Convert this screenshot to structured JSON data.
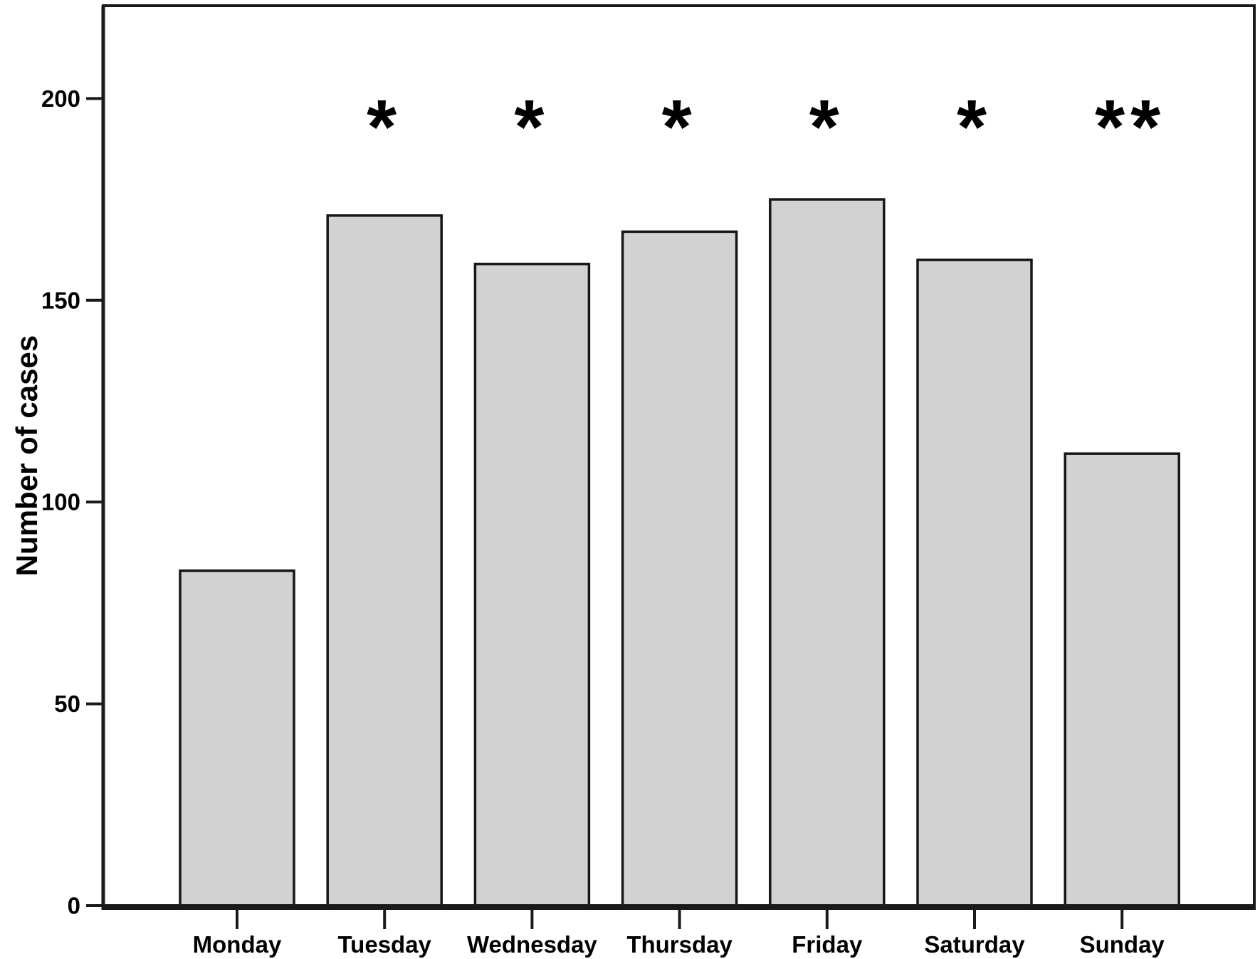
{
  "figure": {
    "background": "#ffffff"
  },
  "chart_data": {
    "type": "bar",
    "title": "",
    "xlabel": "",
    "ylabel": "Number of cases",
    "categories": [
      "Monday",
      "Tuesday",
      "Wednesday",
      "Thursday",
      "Friday",
      "Saturday",
      "Sunday"
    ],
    "values": [
      83,
      171,
      159,
      167,
      175,
      160,
      112
    ],
    "significance_annotations": [
      "",
      "*",
      "*",
      "*",
      "*",
      "*",
      "**"
    ],
    "yticks": [
      0,
      50,
      100,
      150,
      200
    ],
    "ylim": [
      0,
      223
    ],
    "grid": false,
    "legend_position": "none",
    "frame": "full-box",
    "colors": {
      "bar_fill": "#d2d2d2",
      "bar_stroke": "#161616",
      "axis_frame": "#1a1a1a",
      "text": "#000000",
      "background": "#ffffff"
    }
  }
}
